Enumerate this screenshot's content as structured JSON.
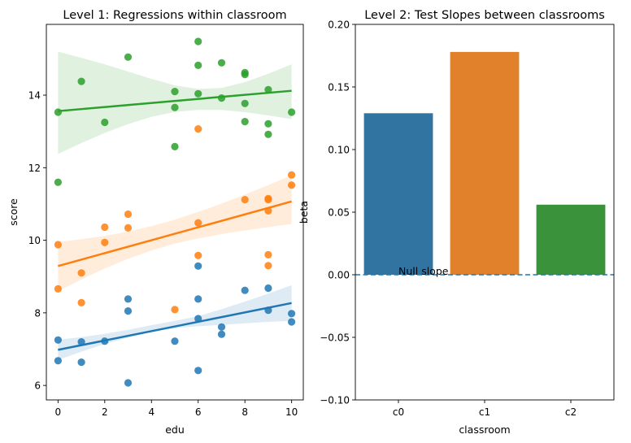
{
  "chart_data": [
    {
      "type": "scatter",
      "title": "Level 1: Regressions within classroom",
      "xlabel": "edu",
      "ylabel": "score",
      "xlim": [
        -0.5,
        10.5
      ],
      "ylim": [
        5.6,
        15.95
      ],
      "xticks": [
        "0",
        "2",
        "4",
        "6",
        "8",
        "10"
      ],
      "yticks": [
        "6",
        "8",
        "10",
        "12",
        "14"
      ],
      "grid": false,
      "series": [
        {
          "color": "#1f77b4",
          "points": [
            [
              0,
              7.25
            ],
            [
              0,
              6.68
            ],
            [
              1,
              7.2
            ],
            [
              1,
              6.64
            ],
            [
              2,
              7.22
            ],
            [
              3,
              8.38
            ],
            [
              3,
              8.05
            ],
            [
              3,
              6.07
            ],
            [
              5,
              7.22
            ],
            [
              6,
              9.29
            ],
            [
              6,
              8.38
            ],
            [
              6,
              7.84
            ],
            [
              6,
              6.41
            ],
            [
              7,
              7.61
            ],
            [
              7,
              7.41
            ],
            [
              8,
              8.62
            ],
            [
              9,
              8.68
            ],
            [
              9,
              8.07
            ],
            [
              10,
              7.98
            ],
            [
              10,
              7.75
            ]
          ],
          "fit": {
            "intercept": 6.98,
            "slope": 0.129
          },
          "band_low": [
            6.7,
            6.93,
            7.14,
            7.32,
            7.48,
            7.58,
            7.63,
            7.67,
            7.71,
            7.75,
            7.78
          ],
          "band_high": [
            7.26,
            7.33,
            7.42,
            7.53,
            7.66,
            7.78,
            7.91,
            8.1,
            8.31,
            8.53,
            8.76
          ]
        },
        {
          "color": "#ff7f0e",
          "points": [
            [
              0,
              9.88
            ],
            [
              0,
              8.66
            ],
            [
              1,
              9.1
            ],
            [
              1,
              8.28
            ],
            [
              2,
              10.36
            ],
            [
              2,
              9.94
            ],
            [
              3,
              10.72
            ],
            [
              3,
              10.34
            ],
            [
              5,
              8.09
            ],
            [
              6,
              13.07
            ],
            [
              6,
              10.48
            ],
            [
              6,
              9.58
            ],
            [
              8,
              11.12
            ],
            [
              9,
              11.15
            ],
            [
              9,
              11.12
            ],
            [
              9,
              10.81
            ],
            [
              9,
              9.6
            ],
            [
              9,
              9.3
            ],
            [
              10,
              11.8
            ],
            [
              10,
              11.52
            ]
          ],
          "fit": {
            "intercept": 9.29,
            "slope": 0.178
          },
          "band_low": [
            8.6,
            8.92,
            9.22,
            9.49,
            9.72,
            9.91,
            10.05,
            10.17,
            10.27,
            10.36,
            10.45
          ],
          "band_high": [
            9.95,
            10.03,
            10.12,
            10.24,
            10.39,
            10.57,
            10.78,
            11.01,
            11.26,
            11.52,
            11.79
          ]
        },
        {
          "color": "#2ca02c",
          "points": [
            [
              0,
              13.53
            ],
            [
              0,
              11.6
            ],
            [
              1,
              14.38
            ],
            [
              2,
              13.25
            ],
            [
              3,
              15.05
            ],
            [
              5,
              14.1
            ],
            [
              5,
              13.66
            ],
            [
              5,
              12.58
            ],
            [
              6,
              15.48
            ],
            [
              6,
              14.82
            ],
            [
              6,
              14.04
            ],
            [
              7,
              14.89
            ],
            [
              7,
              13.92
            ],
            [
              8,
              14.62
            ],
            [
              8,
              14.57
            ],
            [
              8,
              13.77
            ],
            [
              8,
              13.27
            ],
            [
              9,
              14.15
            ],
            [
              9,
              13.21
            ],
            [
              9,
              12.92
            ],
            [
              10,
              13.53
            ]
          ],
          "fit": {
            "intercept": 13.56,
            "slope": 0.056
          },
          "band_low": [
            12.38,
            12.68,
            12.96,
            13.2,
            13.4,
            13.54,
            13.59,
            13.59,
            13.53,
            13.44,
            13.34
          ],
          "band_high": [
            15.2,
            15.03,
            14.85,
            14.65,
            14.45,
            14.27,
            14.17,
            14.2,
            14.36,
            14.59,
            14.85
          ]
        }
      ]
    },
    {
      "type": "bar",
      "title": "Level 2: Test Slopes between classrooms",
      "xlabel": "classroom",
      "ylabel": "beta",
      "categories": [
        "c0",
        "c1",
        "c2"
      ],
      "values": [
        0.129,
        0.178,
        0.056
      ],
      "colors": [
        "#3274a1",
        "#e1812c",
        "#3a923a"
      ],
      "ylim": [
        -0.1,
        0.2
      ],
      "yticks": [
        "0.20",
        "0.15",
        "0.10",
        "0.05",
        "0.00",
        "−0.05",
        "−0.10"
      ],
      "reference_line": {
        "y": 0.0,
        "label": "Null slope",
        "color": "#1f77b4",
        "style": "dashed"
      },
      "grid": false
    }
  ]
}
